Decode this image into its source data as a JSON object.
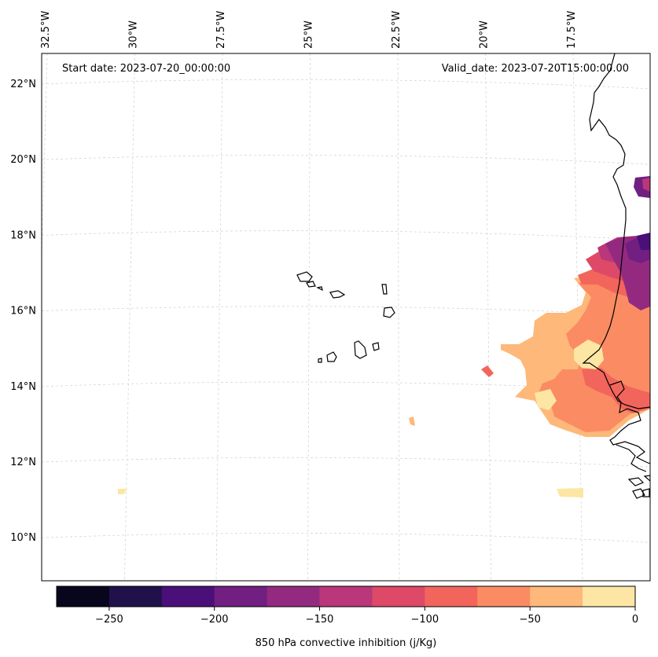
{
  "map": {
    "start_date": "Start date: 2023-07-20_00:00:00",
    "valid_date": "Valid_date: 2023-07-20T15:00:00.00",
    "lon_ticks": [
      {
        "label": "32.5°W",
        "lon": -32.5
      },
      {
        "label": "30°W",
        "lon": -30
      },
      {
        "label": "27.5°W",
        "lon": -27.5
      },
      {
        "label": "25°W",
        "lon": -25
      },
      {
        "label": "22.5°W",
        "lon": -22.5
      },
      {
        "label": "20°W",
        "lon": -20
      },
      {
        "label": "17.5°W",
        "lon": -17.5
      }
    ],
    "lat_ticks": [
      {
        "label": "22°N",
        "lat": 22
      },
      {
        "label": "20°N",
        "lat": 20
      },
      {
        "label": "18°N",
        "lat": 18
      },
      {
        "label": "16°N",
        "lat": 16
      },
      {
        "label": "14°N",
        "lat": 14
      },
      {
        "label": "12°N",
        "lat": 12
      },
      {
        "label": "10°N",
        "lat": 10
      }
    ]
  },
  "colorbar": {
    "label": "850 hPa convective inhibition (j/Kg)",
    "levels": [
      -275,
      -250,
      -225,
      -200,
      -175,
      -150,
      -125,
      -100,
      -75,
      -50,
      -25,
      0
    ],
    "colors": [
      "#08061c",
      "#21114b",
      "#4b0f79",
      "#711f81",
      "#942a80",
      "#b9377a",
      "#de4968",
      "#f2655c",
      "#fb8b63",
      "#fdb87a",
      "#fde6a4"
    ],
    "tick_labels": [
      {
        "value": -250,
        "label": "−250"
      },
      {
        "value": -200,
        "label": "−200"
      },
      {
        "value": -150,
        "label": "−150"
      },
      {
        "value": -100,
        "label": "−100"
      },
      {
        "value": -50,
        "label": "−50"
      },
      {
        "value": 0,
        "label": "0"
      }
    ]
  }
}
